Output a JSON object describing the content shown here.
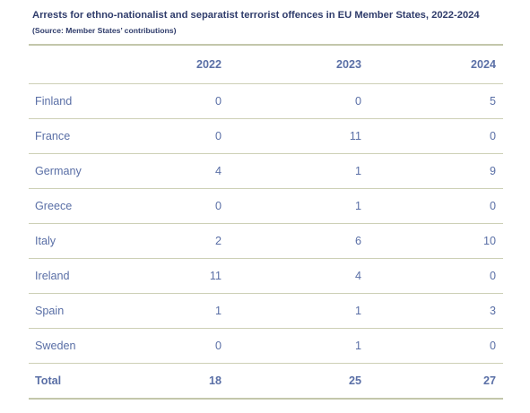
{
  "caption": {
    "title": "Arrests for ethno-nationalist and separatist terrorist offences in EU Member States, 2022-2024",
    "source": "(Source: Member States’ contributions)"
  },
  "table": {
    "headers": [
      "",
      "2022",
      "2023",
      "2024"
    ],
    "rows": [
      {
        "country": "Finland",
        "y2022": "0",
        "y2023": "0",
        "y2024": "5"
      },
      {
        "country": "France",
        "y2022": "0",
        "y2023": "11",
        "y2024": "0"
      },
      {
        "country": "Germany",
        "y2022": "4",
        "y2023": "1",
        "y2024": "9"
      },
      {
        "country": "Greece",
        "y2022": "0",
        "y2023": "1",
        "y2024": "0"
      },
      {
        "country": "Italy",
        "y2022": "2",
        "y2023": "6",
        "y2024": "10"
      },
      {
        "country": "Ireland",
        "y2022": "11",
        "y2023": "4",
        "y2024": "0"
      },
      {
        "country": "Spain",
        "y2022": "1",
        "y2023": "1",
        "y2024": "3"
      },
      {
        "country": "Sweden",
        "y2022": "0",
        "y2023": "1",
        "y2024": "0"
      }
    ],
    "total": {
      "label": "Total",
      "y2022": "18",
      "y2023": "25",
      "y2024": "27"
    }
  }
}
